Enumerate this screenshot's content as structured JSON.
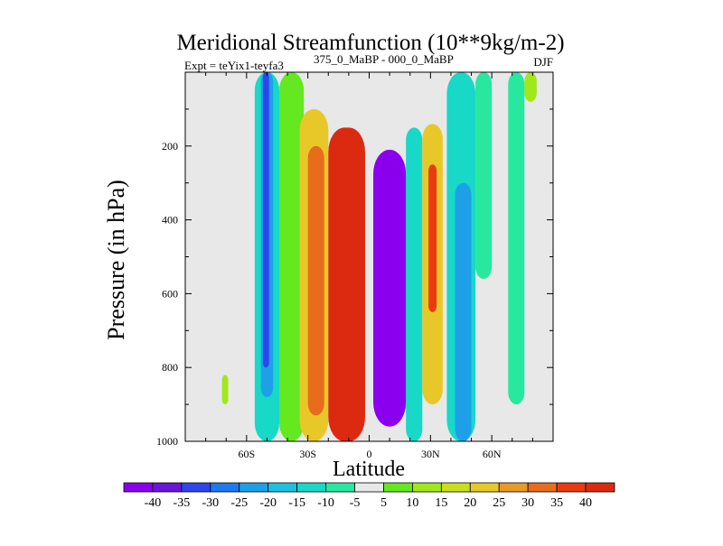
{
  "chart_data": {
    "type": "heatmap",
    "title": "Meridional Streamfunction (10**9kg/m-2)",
    "subtitle_left": "Expt = teYix1-teyfa3",
    "subtitle_mid": "375_0_MaBP - 000_0_MaBP",
    "season": "DJF",
    "xlabel": "Latitude",
    "ylabel": "Pressure (in hPa)",
    "xlim": [
      -90,
      90
    ],
    "ylim": [
      1000,
      0
    ],
    "x_ticks": [
      -60,
      -30,
      0,
      30,
      60
    ],
    "x_tick_labels": [
      "60S",
      "30S",
      "0",
      "30N",
      "60N"
    ],
    "y_ticks": [
      200,
      400,
      600,
      800,
      1000
    ],
    "y_tick_labels": [
      "200",
      "400",
      "600",
      "800",
      "1000"
    ],
    "colorbar": {
      "levels": [
        -40,
        -35,
        -30,
        -25,
        -20,
        -15,
        -10,
        -5,
        5,
        10,
        15,
        20,
        25,
        30,
        35,
        40
      ],
      "labels": [
        "-40",
        "-35",
        "-30",
        "-25",
        "-20",
        "-15",
        "-10",
        "-5",
        "5",
        "10",
        "15",
        "20",
        "25",
        "30",
        "35",
        "40"
      ],
      "colors": [
        "#8a00ee",
        "#6a14dc",
        "#2e46ee",
        "#1e78ee",
        "#1ea0e8",
        "#1ec0e0",
        "#18d8c8",
        "#28e8a0",
        "#e8e8e8",
        "#64e820",
        "#a0e81c",
        "#c8e01c",
        "#e8c828",
        "#e89a28",
        "#e86c1c",
        "#e83c10",
        "#dc2a10"
      ]
    },
    "bands": [
      {
        "lat_min": -56,
        "lat_max": -44,
        "p_top": 0,
        "p_bottom": 1000,
        "value": -10
      },
      {
        "lat_min": -53,
        "lat_max": -47,
        "p_top": 0,
        "p_bottom": 880,
        "value": -20
      },
      {
        "lat_min": -52,
        "lat_max": -49,
        "p_top": 0,
        "p_bottom": 800,
        "value": -30
      },
      {
        "lat_min": -44,
        "lat_max": -32,
        "p_top": 0,
        "p_bottom": 1000,
        "value": 5
      },
      {
        "lat_min": -34,
        "lat_max": -20,
        "p_top": 100,
        "p_bottom": 1000,
        "value": 20
      },
      {
        "lat_min": -30,
        "lat_max": -22,
        "p_top": 200,
        "p_bottom": 930,
        "value": 30
      },
      {
        "lat_min": -20,
        "lat_max": -2,
        "p_top": 150,
        "p_bottom": 1000,
        "value": 40
      },
      {
        "lat_min": 2,
        "lat_max": 18,
        "p_top": 210,
        "p_bottom": 960,
        "value": -40
      },
      {
        "lat_min": 18,
        "lat_max": 26,
        "p_top": 150,
        "p_bottom": 1000,
        "value": -10
      },
      {
        "lat_min": 26,
        "lat_max": 36,
        "p_top": 140,
        "p_bottom": 900,
        "value": 20
      },
      {
        "lat_min": 29,
        "lat_max": 33,
        "p_top": 250,
        "p_bottom": 650,
        "value": 35
      },
      {
        "lat_min": 38,
        "lat_max": 52,
        "p_top": 0,
        "p_bottom": 1000,
        "value": -10
      },
      {
        "lat_min": 42,
        "lat_max": 50,
        "p_top": 300,
        "p_bottom": 1000,
        "value": -20
      },
      {
        "lat_min": 52,
        "lat_max": 60,
        "p_top": 0,
        "p_bottom": 560,
        "value": -5
      },
      {
        "lat_min": 68,
        "lat_max": 76,
        "p_top": 0,
        "p_bottom": 900,
        "value": -5
      },
      {
        "lat_min": 76,
        "lat_max": 82,
        "p_top": 0,
        "p_bottom": 80,
        "value": 10
      },
      {
        "lat_min": -72,
        "lat_max": -69,
        "p_top": 820,
        "p_bottom": 900,
        "value": 10
      }
    ]
  }
}
